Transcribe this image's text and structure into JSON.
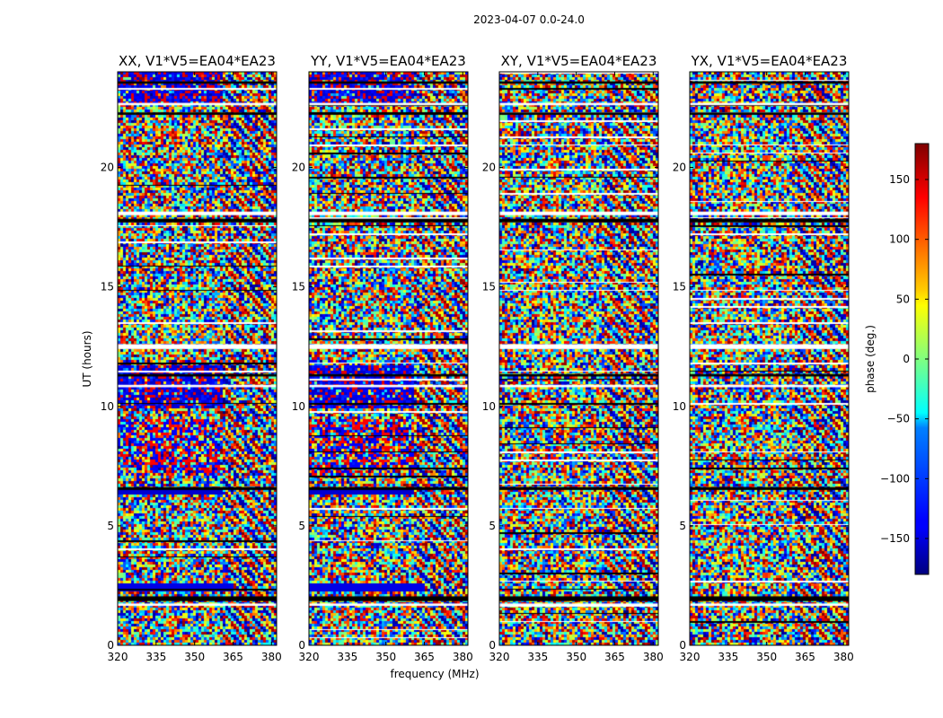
{
  "figure_title": "2023-04-07 0.0-24.0",
  "chart_data": {
    "type": "heatmap",
    "title": "2023-04-07 0.0-24.0",
    "xlabel": "frequency (MHz)",
    "ylabel": "UT (hours)",
    "xlim": [
      320,
      382
    ],
    "ylim": [
      0,
      24
    ],
    "xticks": [
      320,
      335,
      350,
      365,
      380
    ],
    "yticks": [
      0,
      5,
      10,
      15,
      20
    ],
    "panels": [
      {
        "title": "XX, V1*V5=EA04*EA23",
        "pol": "XX"
      },
      {
        "title": "YY, V1*V5=EA04*EA23",
        "pol": "YY"
      },
      {
        "title": "XY, V1*V5=EA04*EA23",
        "pol": "XY"
      },
      {
        "title": "YX, V1*V5=EA04*EA23",
        "pol": "YX"
      }
    ],
    "colorbar": {
      "label": "phase (deg.)",
      "colormap": "jet",
      "range": [
        -180,
        180
      ],
      "ticks": [
        -150,
        -100,
        -50,
        0,
        50,
        100,
        150
      ],
      "tick_labels": [
        "−150",
        "−100",
        "−50",
        "0",
        "50",
        "100",
        "150"
      ]
    },
    "flagged_ut_bands": [
      [
        1.85,
        2.05
      ],
      [
        1.65,
        1.75
      ],
      [
        6.5,
        6.62
      ],
      [
        10.8,
        10.9
      ],
      [
        11.25,
        11.35
      ],
      [
        12.4,
        12.6
      ],
      [
        17.7,
        17.85
      ],
      [
        18.0,
        18.15
      ],
      [
        22.2,
        22.3
      ],
      [
        22.6,
        22.7
      ],
      [
        23.5,
        23.6
      ]
    ]
  },
  "colors": {
    "jet_dark_blue": "#00007f",
    "jet_blue": "#0000ff",
    "jet_cyan": "#00ffff",
    "jet_yellow": "#ffff00",
    "jet_red": "#ff0000",
    "jet_dark_red": "#7f0000"
  }
}
